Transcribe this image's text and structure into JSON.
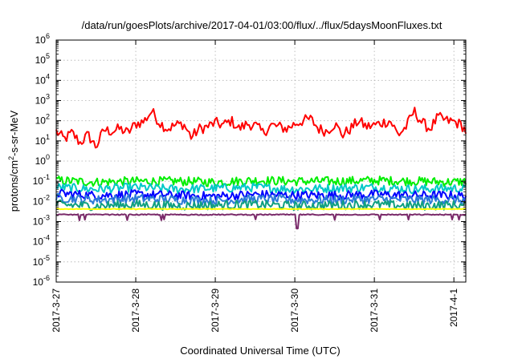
{
  "chart_data": {
    "type": "line",
    "title": "/data/run/goesPlots/archive/2017-04-01/03:00/flux/../flux/5daysMoonFluxes.txt",
    "xlabel": "Coordinated Universal Time (UTC)",
    "ylabel_parts": [
      "protons/cm",
      "2",
      "-s-sr-MeV"
    ],
    "y_scale": "log",
    "ylim": [
      1e-06,
      1000000.0
    ],
    "y_tick_exponents": [
      "-6",
      "-5",
      "-4",
      "-3",
      "-2",
      "-1",
      "0",
      "1",
      "2",
      "3",
      "4",
      "5",
      "6"
    ],
    "y_tick_base": "10",
    "x_ticks": [
      "2017-3-27",
      "2017-3-28",
      "2017-3-29",
      "2017-3-30",
      "2017-3-31",
      "2017-4-1"
    ],
    "xlim_days": [
      0,
      5.15
    ],
    "grid": true,
    "legend": "none",
    "series": [
      {
        "color": "#ff0000",
        "style": "noisy-spiky",
        "x": [
          0,
          0.1,
          0.2,
          0.3,
          0.4,
          0.5,
          0.6,
          0.7,
          0.8,
          0.9,
          1.0,
          1.1,
          1.2,
          1.3,
          1.4,
          1.5,
          1.6,
          1.7,
          1.8,
          1.9,
          2.0,
          2.1,
          2.2,
          2.3,
          2.4,
          2.5,
          2.6,
          2.7,
          2.8,
          2.9,
          3.0,
          3.1,
          3.2,
          3.3,
          3.4,
          3.5,
          3.6,
          3.7,
          3.8,
          3.9,
          4.0,
          4.1,
          4.2,
          4.3,
          4.4,
          4.5,
          4.6,
          4.7,
          4.8,
          4.9,
          5.0,
          5.1,
          5.15
        ],
        "y": [
          30,
          12,
          25,
          8,
          20,
          5,
          35,
          30,
          40,
          25,
          70,
          90,
          300,
          80,
          40,
          60,
          70,
          15,
          40,
          50,
          80,
          60,
          100,
          40,
          70,
          60,
          25,
          60,
          50,
          40,
          70,
          100,
          120,
          40,
          30,
          70,
          20,
          40,
          100,
          50,
          60,
          80,
          100,
          20,
          50,
          300,
          80,
          40,
          150,
          100,
          90,
          60,
          30
        ]
      },
      {
        "color": "#00ee00",
        "style": "noisy",
        "x": [
          0,
          0.5,
          1,
          1.5,
          2,
          2.5,
          3,
          3.5,
          4,
          4.5,
          5,
          5.15
        ],
        "y": [
          0.11,
          0.09,
          0.1,
          0.1,
          0.09,
          0.11,
          0.1,
          0.1,
          0.11,
          0.1,
          0.09,
          0.1
        ]
      },
      {
        "color": "#00c8c8",
        "style": "noisy",
        "x": [
          0,
          0.5,
          1,
          1.5,
          2,
          2.5,
          3,
          3.5,
          4,
          4.5,
          5,
          5.15
        ],
        "y": [
          0.05,
          0.04,
          0.05,
          0.04,
          0.045,
          0.05,
          0.04,
          0.045,
          0.05,
          0.04,
          0.045,
          0.04
        ]
      },
      {
        "color": "#0000ff",
        "style": "noisy",
        "x": [
          0,
          0.5,
          1,
          1.5,
          2,
          2.5,
          3,
          3.5,
          4,
          4.5,
          5,
          5.15
        ],
        "y": [
          0.025,
          0.02,
          0.022,
          0.02,
          0.018,
          0.022,
          0.02,
          0.02,
          0.022,
          0.02,
          0.02,
          0.018
        ]
      },
      {
        "color": "#2c7bd8",
        "style": "noisy",
        "x": [
          0,
          0.5,
          1,
          1.5,
          2,
          2.5,
          3,
          3.5,
          4,
          4.5,
          5,
          5.15
        ],
        "y": [
          0.015,
          0.012,
          0.014,
          0.012,
          0.011,
          0.013,
          0.012,
          0.012,
          0.013,
          0.012,
          0.012,
          0.011
        ]
      },
      {
        "color": "#10a080",
        "style": "noisy",
        "x": [
          0,
          0.5,
          1,
          1.5,
          2,
          2.5,
          3,
          3.5,
          4,
          4.5,
          5,
          5.15
        ],
        "y": [
          0.007,
          0.006,
          0.007,
          0.006,
          0.0065,
          0.007,
          0.006,
          0.0065,
          0.007,
          0.006,
          0.0065,
          0.006
        ]
      },
      {
        "color": "#ffff00",
        "style": "flat",
        "x": [
          0,
          0.5,
          1,
          1.5,
          2,
          2.5,
          3,
          3.5,
          4,
          4.5,
          5,
          5.15
        ],
        "y": [
          0.0042,
          0.0042,
          0.0042,
          0.0042,
          0.0042,
          0.0042,
          0.0042,
          0.0042,
          0.0042,
          0.0042,
          0.0042,
          0.0042
        ]
      },
      {
        "color": "#7a2a6a",
        "style": "flat-dips",
        "x": [
          0,
          0.5,
          1,
          1.5,
          2,
          2.5,
          3,
          3.5,
          4,
          4.5,
          5,
          5.15
        ],
        "y": [
          0.0022,
          0.0022,
          0.0022,
          0.0022,
          0.0022,
          0.0022,
          0.0022,
          0.0022,
          0.0022,
          0.0022,
          0.0022,
          0.0022
        ]
      }
    ]
  }
}
